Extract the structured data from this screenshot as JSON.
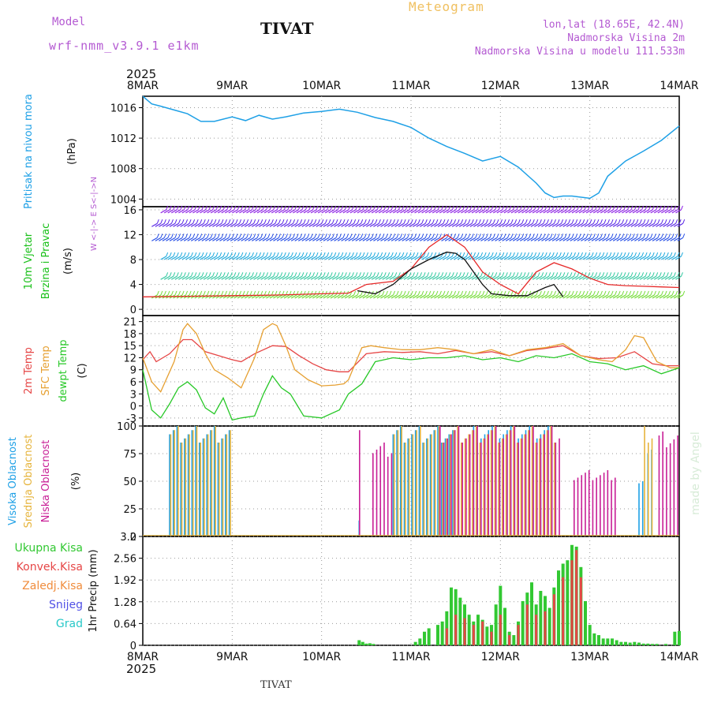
{
  "header": {
    "model_label": "Model",
    "model_name": "wrf-nmm_v3.9.1 e1km",
    "station": "TIVAT",
    "product": "Meteogram",
    "lonlat": "lon,lat (18.65E, 42.4N)",
    "elevation": "Nadmorska Visina 2m",
    "model_elevation": "Nadmorska Visina u modelu 111.533m",
    "footer_station": "TIVAT",
    "watermark": "made by Angel"
  },
  "time_axis": {
    "year": "2025",
    "labels": [
      "8MAR",
      "9MAR",
      "10MAR",
      "11MAR",
      "12MAR",
      "13MAR",
      "14MAR"
    ]
  },
  "colors": {
    "pressure": "#1ea0e6",
    "wind_label": "#18c018",
    "temp_2m": "#e64646",
    "temp_sfc": "#e6a032",
    "dewpoint": "#28c828",
    "cloud_high": "#1ea0e6",
    "cloud_mid": "#e6b43c",
    "cloud_low": "#c81e96",
    "precip_total": "#32c832",
    "precip_conv": "#e64646",
    "precip_frz": "#f08c3c",
    "precip_snow": "#5050e6",
    "precip_grad": "#28c8c8",
    "header_purple": "#b45ad2",
    "watermark": "#d7ebd7"
  },
  "chart_data": [
    {
      "id": "pressure",
      "type": "line",
      "title": "",
      "ylabel_lines": [
        "Pritisak na nivou mora",
        "(hPa)"
      ],
      "ylim": [
        1003,
        1017.5
      ],
      "yticks": [
        1004,
        1008,
        1012,
        1016
      ],
      "grid": true,
      "x_unit": "days since 8MAR 00Z",
      "x": [
        0,
        0.1,
        0.2,
        0.35,
        0.5,
        0.65,
        0.8,
        1.0,
        1.15,
        1.3,
        1.45,
        1.6,
        1.8,
        2.0,
        2.2,
        2.4,
        2.6,
        2.8,
        3.0,
        3.2,
        3.4,
        3.6,
        3.8,
        4.0,
        4.2,
        4.4,
        4.5,
        4.6,
        4.7,
        4.8,
        5.0,
        5.1,
        5.2,
        5.4,
        5.6,
        5.8,
        6.0
      ],
      "values": [
        1017.5,
        1016.5,
        1016.2,
        1015.7,
        1015.2,
        1014.2,
        1014.2,
        1014.8,
        1014.3,
        1015.0,
        1014.5,
        1014.8,
        1015.3,
        1015.5,
        1015.8,
        1015.4,
        1014.7,
        1014.2,
        1013.4,
        1012.0,
        1010.9,
        1010.0,
        1009.0,
        1009.6,
        1008.2,
        1006.1,
        1004.8,
        1004.2,
        1004.4,
        1004.4,
        1004.1,
        1004.8,
        1007.0,
        1009.0,
        1010.3,
        1011.7,
        1013.6
      ]
    },
    {
      "id": "wind",
      "type": "line",
      "title": "",
      "ylabel_lines": [
        "10m Vjetar",
        "Brzina i Pravac",
        "(m/s)"
      ],
      "direction_key": "W <-|-> E  S<-|->N",
      "ylim": [
        -1,
        16.5
      ],
      "yticks": [
        0,
        4,
        8,
        12,
        16
      ],
      "grid": true,
      "x_unit": "days since 8MAR 00Z",
      "barb_rows": [
        {
          "level": 15.5,
          "x_start": 0.2,
          "x_end": 6.0,
          "color": "#8c1ee6"
        },
        {
          "level": 13.3,
          "x_start": 0.1,
          "x_end": 6.0,
          "color": "#5a28e6"
        },
        {
          "level": 11.0,
          "x_start": 0.1,
          "x_end": 6.0,
          "color": "#2850e6"
        },
        {
          "level": 8.0,
          "x_start": 0.2,
          "x_end": 6.0,
          "color": "#1eaadc"
        },
        {
          "level": 4.8,
          "x_start": 0.2,
          "x_end": 6.0,
          "color": "#32c8a0"
        },
        {
          "level": 1.8,
          "x_start": 0.1,
          "x_end": 6.0,
          "color": "#78dc3c"
        }
      ],
      "series": [
        {
          "name": "speed",
          "color": "#e62828",
          "x": [
            0,
            0.5,
            1.0,
            1.5,
            2.0,
            2.3,
            2.5,
            2.8,
            3.0,
            3.2,
            3.4,
            3.6,
            3.8,
            4.0,
            4.2,
            4.4,
            4.6,
            4.8,
            5.0,
            5.2,
            5.4,
            5.6,
            5.8,
            6.0
          ],
          "values": [
            2.0,
            2.1,
            2.2,
            2.3,
            2.5,
            2.6,
            4.0,
            4.5,
            6.5,
            10.0,
            12.0,
            10.0,
            6.0,
            4.0,
            2.5,
            6.0,
            7.5,
            6.5,
            5.0,
            4.0,
            3.8,
            3.7,
            3.6,
            3.5
          ]
        },
        {
          "name": "gust",
          "color": "#111111",
          "x": [
            2.4,
            2.6,
            2.8,
            3.0,
            3.2,
            3.4,
            3.5,
            3.6,
            3.7,
            3.8,
            3.9,
            4.1,
            4.3,
            4.5,
            4.6,
            4.7
          ],
          "values": [
            3.0,
            2.5,
            4.0,
            6.5,
            8.0,
            9.2,
            9.0,
            8.0,
            6.0,
            4.0,
            2.5,
            2.2,
            2.2,
            3.5,
            4.0,
            2.0
          ]
        }
      ]
    },
    {
      "id": "temperature",
      "type": "line",
      "title": "",
      "ylabel_lines": [
        "2m Temp",
        "SFC Temp",
        "dewpt Temp",
        "(C)"
      ],
      "ylim": [
        -5,
        22.5
      ],
      "yticks": [
        -3,
        0,
        3,
        6,
        9,
        12,
        15,
        18,
        21
      ],
      "grid": true,
      "x_unit": "days since 8MAR 00Z",
      "series": [
        {
          "name": "2m Temp",
          "color": "#e64646",
          "x": [
            0,
            0.08,
            0.15,
            0.3,
            0.45,
            0.55,
            0.7,
            0.85,
            1.0,
            1.1,
            1.25,
            1.45,
            1.6,
            1.75,
            1.9,
            2.05,
            2.2,
            2.3,
            2.5,
            2.7,
            2.9,
            3.1,
            3.3,
            3.5,
            3.7,
            3.9,
            4.1,
            4.3,
            4.5,
            4.7,
            4.9,
            5.1,
            5.3,
            5.5,
            5.7,
            5.85,
            6.0
          ],
          "values": [
            11.5,
            13.5,
            11.0,
            13.0,
            16.5,
            16.5,
            13.5,
            12.5,
            11.5,
            11.0,
            13.0,
            15.0,
            14.8,
            12.5,
            10.5,
            9.0,
            8.5,
            8.5,
            13.0,
            13.5,
            13.3,
            13.5,
            13.0,
            13.8,
            13.0,
            13.5,
            12.5,
            13.8,
            14.3,
            15.0,
            12.5,
            11.8,
            12.0,
            13.5,
            10.5,
            10.0,
            10.0
          ]
        },
        {
          "name": "SFC Temp",
          "color": "#e6a032",
          "x": [
            0,
            0.1,
            0.2,
            0.35,
            0.45,
            0.5,
            0.6,
            0.7,
            0.8,
            0.95,
            1.1,
            1.25,
            1.35,
            1.45,
            1.5,
            1.6,
            1.7,
            1.85,
            2.0,
            2.15,
            2.25,
            2.3,
            2.45,
            2.55,
            2.7,
            2.9,
            3.1,
            3.3,
            3.5,
            3.7,
            3.9,
            4.1,
            4.3,
            4.5,
            4.7,
            4.9,
            5.1,
            5.25,
            5.4,
            5.5,
            5.6,
            5.75,
            5.9,
            6.0
          ],
          "values": [
            12.0,
            6.0,
            3.5,
            11.0,
            19.0,
            20.5,
            18.0,
            13.0,
            9.0,
            7.0,
            4.5,
            12.0,
            19.0,
            20.5,
            20.0,
            15.0,
            9.0,
            6.5,
            5.0,
            5.2,
            5.5,
            6.5,
            14.5,
            15.0,
            14.5,
            14.0,
            14.0,
            14.5,
            14.0,
            13.0,
            14.0,
            12.5,
            14.0,
            14.5,
            15.5,
            12.5,
            11.5,
            11.0,
            14.0,
            17.5,
            17.0,
            11.0,
            9.5,
            9.5
          ]
        },
        {
          "name": "dewpt Temp",
          "color": "#28c828",
          "x": [
            0,
            0.1,
            0.2,
            0.3,
            0.4,
            0.5,
            0.6,
            0.7,
            0.8,
            0.9,
            1.0,
            1.1,
            1.25,
            1.35,
            1.45,
            1.55,
            1.65,
            1.8,
            2.0,
            2.2,
            2.3,
            2.45,
            2.6,
            2.8,
            3.0,
            3.2,
            3.4,
            3.6,
            3.8,
            4.0,
            4.2,
            4.4,
            4.6,
            4.8,
            5.0,
            5.2,
            5.4,
            5.6,
            5.8,
            6.0
          ],
          "values": [
            9.0,
            -1.0,
            -3.0,
            0.5,
            4.5,
            6.0,
            4.0,
            -0.5,
            -2.0,
            2.0,
            -3.5,
            -3.0,
            -2.5,
            3.0,
            7.5,
            4.5,
            3.0,
            -2.5,
            -3.0,
            -1.0,
            3.0,
            5.5,
            11.0,
            12.0,
            11.5,
            12.0,
            12.0,
            12.5,
            11.5,
            12.0,
            11.0,
            12.5,
            12.0,
            13.0,
            11.0,
            10.5,
            9.0,
            10.0,
            8.0,
            9.5
          ]
        }
      ]
    },
    {
      "id": "cloud",
      "type": "bar",
      "title": "",
      "ylabel_lines": [
        "Visoka Oblacnost",
        "Srednja Oblacnost",
        "Niska Oblacnost",
        "(%)"
      ],
      "ylim": [
        0,
        100
      ],
      "yticks": [
        0,
        25,
        50,
        75,
        100
      ],
      "grid": true,
      "x_unit": "days since 8MAR 00Z",
      "series": [
        {
          "name": "Visoka Oblacnost",
          "color": "#1ea0e6",
          "segments": [
            [
              0.3,
              1.0,
              100
            ],
            [
              2.42,
              2.45,
              15
            ],
            [
              2.8,
              3.5,
              100
            ],
            [
              3.7,
              4.6,
              100
            ],
            [
              5.55,
              5.6,
              50
            ],
            [
              5.65,
              5.72,
              85
            ]
          ]
        },
        {
          "name": "Srednja Oblacnost",
          "color": "#e6b43c",
          "segments": [
            [
              0.3,
              1.0,
              100
            ],
            [
              2.8,
              4.6,
              100
            ],
            [
              5.6,
              5.72,
              100
            ]
          ]
        },
        {
          "name": "Niska Oblacnost",
          "color": "#c81e96",
          "segments": [
            [
              2.4,
              2.41,
              100
            ],
            [
              2.55,
              2.8,
              85
            ],
            [
              3.3,
              4.65,
              100
            ],
            [
              4.8,
              5.3,
              60
            ],
            [
              5.75,
              6.0,
              95
            ]
          ]
        }
      ]
    },
    {
      "id": "precip",
      "type": "bar",
      "title": "",
      "ylabel_lines": [
        "1hr Precip (mm)"
      ],
      "legend": [
        "Ukupna Kisa",
        "Konvek.Kisa",
        "Zaledj.Kisa",
        "Snijeg",
        "Grad"
      ],
      "ylim": [
        0,
        3.2
      ],
      "yticks": [
        0,
        0.64,
        1.28,
        1.92,
        2.56,
        3.2
      ],
      "grid": true,
      "x_unit": "days since 8MAR 00Z",
      "series": [
        {
          "name": "Ukupna Kisa",
          "color": "#32c832",
          "x": [
            2.42,
            2.46,
            2.5,
            2.54,
            2.58,
            3.05,
            3.1,
            3.15,
            3.2,
            3.3,
            3.35,
            3.4,
            3.45,
            3.5,
            3.55,
            3.6,
            3.65,
            3.7,
            3.75,
            3.8,
            3.85,
            3.9,
            3.95,
            4.0,
            4.05,
            4.1,
            4.15,
            4.2,
            4.25,
            4.3,
            4.35,
            4.4,
            4.45,
            4.5,
            4.55,
            4.6,
            4.65,
            4.7,
            4.75,
            4.8,
            4.85,
            4.9,
            4.95,
            5.0,
            5.05,
            5.1,
            5.15,
            5.2,
            5.25,
            5.3,
            5.35,
            5.4,
            5.45,
            5.5,
            5.55,
            5.6,
            5.65,
            5.7,
            5.75,
            5.85,
            5.95,
            6.0
          ],
          "values": [
            0.15,
            0.1,
            0.05,
            0.06,
            0.04,
            0.1,
            0.2,
            0.4,
            0.5,
            0.6,
            0.7,
            1.0,
            1.7,
            1.65,
            1.4,
            1.2,
            0.9,
            0.7,
            0.9,
            0.75,
            0.55,
            0.6,
            1.2,
            1.75,
            1.1,
            0.4,
            0.3,
            0.7,
            1.3,
            1.55,
            1.85,
            1.2,
            1.6,
            1.45,
            1.1,
            1.7,
            2.2,
            2.4,
            2.5,
            2.95,
            2.9,
            2.3,
            1.3,
            0.6,
            0.35,
            0.3,
            0.2,
            0.2,
            0.2,
            0.15,
            0.1,
            0.1,
            0.08,
            0.1,
            0.08,
            0.05,
            0.05,
            0.04,
            0.04,
            0.04,
            0.4,
            0.42
          ]
        },
        {
          "name": "Konvek.Kisa",
          "color": "#e64646",
          "x": [
            3.4,
            3.5,
            3.6,
            3.7,
            3.8,
            3.9,
            4.0,
            4.1,
            4.2,
            4.3,
            4.4,
            4.5,
            4.6,
            4.7,
            4.8,
            4.85,
            4.9
          ],
          "values": [
            0.5,
            0.9,
            0.8,
            0.6,
            0.7,
            0.4,
            0.9,
            0.3,
            0.6,
            1.2,
            0.9,
            1.0,
            1.5,
            2.0,
            2.5,
            2.8,
            2.0
          ]
        }
      ]
    }
  ]
}
